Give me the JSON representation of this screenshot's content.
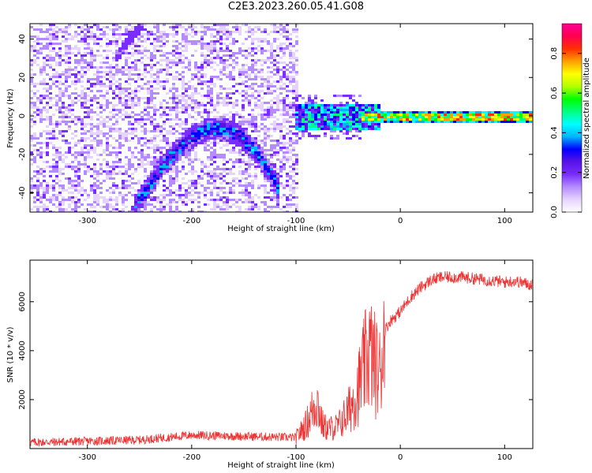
{
  "title": "C2E3.2023.260.05.41.G08",
  "colors": {
    "snr_line": "#ee3333",
    "colorbar_stops": [
      "#ffffff",
      "#e6d3ff",
      "#b48cff",
      "#7a2dff",
      "#5a12e8",
      "#0000ff",
      "#00b4ff",
      "#00ffff",
      "#00ff80",
      "#00ff00",
      "#b4ff00",
      "#ffff00",
      "#ffa000",
      "#ff3000",
      "#ff0050",
      "#ff0096"
    ]
  },
  "chart_data": [
    {
      "type": "heatmap",
      "xlabel": "Height of straight line (km)",
      "ylabel": "Frequency (Hz)",
      "xlim": [
        -355,
        127
      ],
      "ylim": [
        -50,
        48
      ],
      "x_ticks": [
        -300,
        -200,
        -100,
        0,
        100
      ],
      "y_ticks": [
        -40,
        -20,
        0,
        20,
        40
      ],
      "colorbar": {
        "label": "Normalized spectral amplitude",
        "ticks": [
          "0.0",
          "0.2",
          "0.4",
          "0.6",
          "0.8"
        ],
        "range": [
          0,
          0.95
        ]
      },
      "features": {
        "arc_trace": {
          "x": [
            -258,
            -245,
            -230,
            -215,
            -200,
            -185,
            -170,
            -155,
            -140,
            -125,
            -118
          ],
          "y": [
            -48,
            -38,
            -26,
            -17,
            -10,
            -6,
            -6,
            -10,
            -18,
            -30,
            -38
          ]
        },
        "rising_trace": {
          "x": [
            -275,
            -265,
            -255,
            -248
          ],
          "y": [
            30,
            38,
            44,
            48
          ]
        },
        "carrier_band": {
          "x": [
            -100,
            -60,
            -20,
            0,
            40,
            80,
            100,
            127
          ],
          "y": [
            0,
            0,
            0,
            0,
            0,
            0,
            0,
            0
          ]
        }
      }
    },
    {
      "type": "line",
      "xlabel": "Height of straight line (km)",
      "ylabel": "SNR (10 * v/v)",
      "xlim": [
        -355,
        127
      ],
      "ylim": [
        0,
        7700
      ],
      "x_ticks": [
        -300,
        -200,
        -100,
        0,
        100
      ],
      "y_ticks": [
        2000,
        4000,
        6000
      ],
      "series": [
        {
          "x": [
            -355,
            -300,
            -250,
            -200,
            -150,
            -100,
            -90,
            -80,
            -75,
            -70,
            -60,
            -50,
            -40,
            -30,
            -20,
            -15,
            -10,
            0,
            10,
            20,
            30,
            40,
            60,
            80,
            100,
            110,
            120,
            125,
            127
          ],
          "y": [
            250,
            300,
            350,
            550,
            500,
            450,
            1000,
            2000,
            1000,
            800,
            900,
            1500,
            2500,
            4000,
            3000,
            4800,
            5200,
            5600,
            6200,
            6600,
            6900,
            7000,
            7000,
            6900,
            6800,
            6850,
            6750,
            6700,
            6800
          ]
        }
      ]
    }
  ]
}
